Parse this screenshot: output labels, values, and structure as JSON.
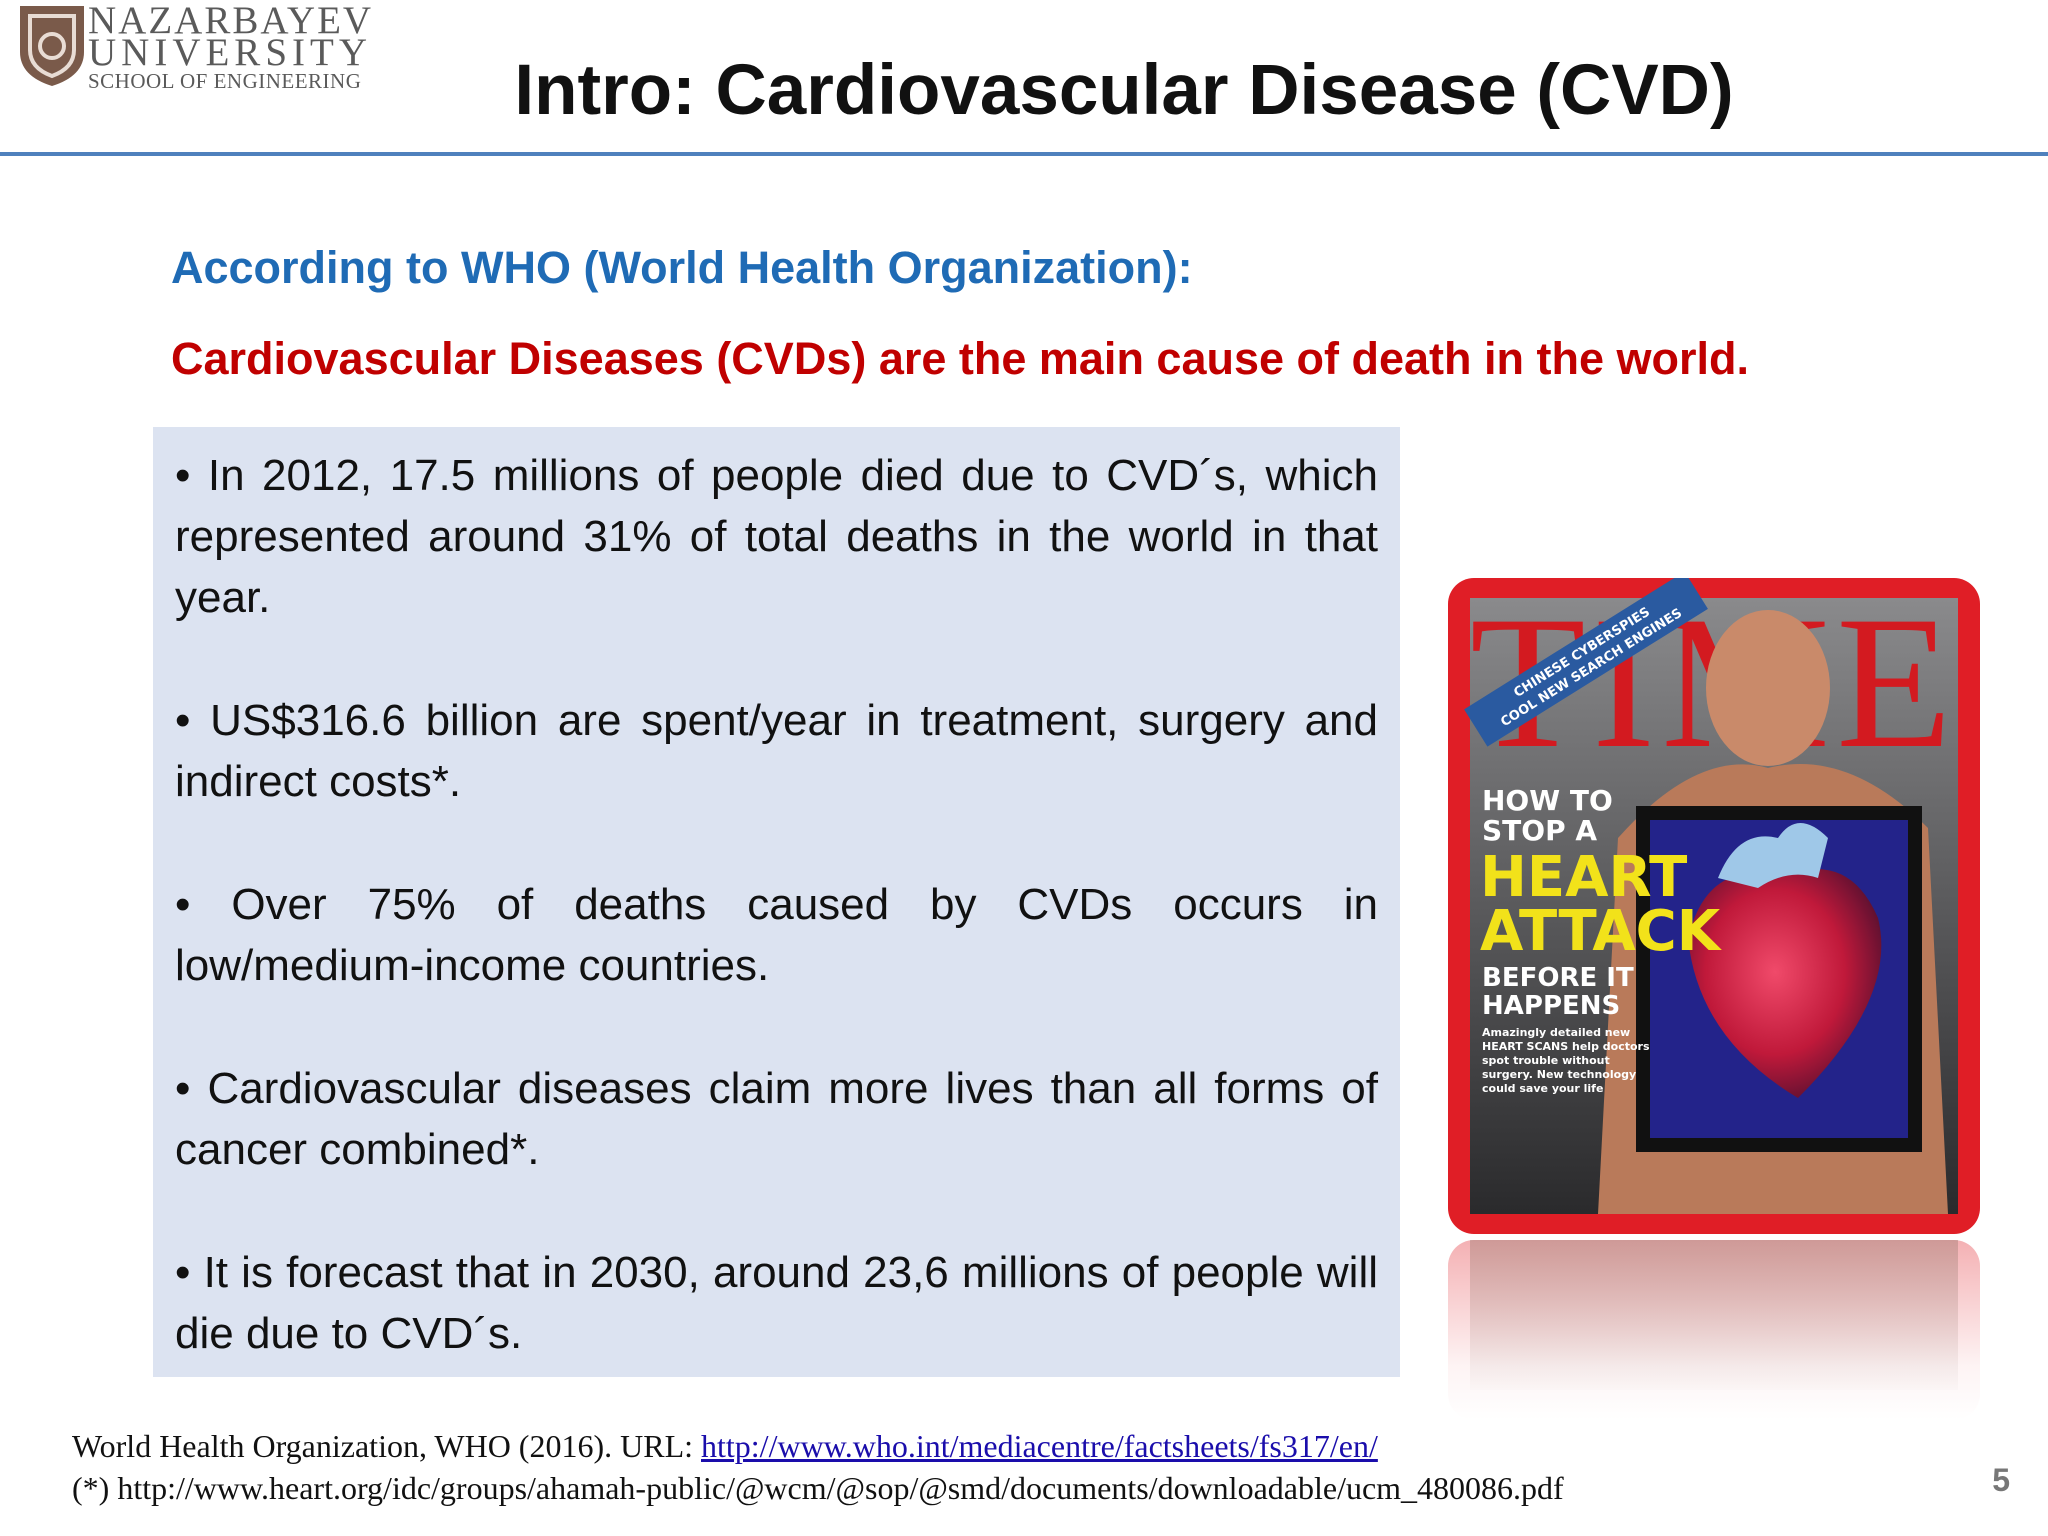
{
  "header": {
    "logo": {
      "line1": "NAZARBAYEV",
      "line2": "UNIVERSITY",
      "line3": "SCHOOL OF ENGINEERING"
    },
    "title": "Intro: Cardiovascular Disease (CVD)",
    "rule_color": "#4f81bd"
  },
  "intro": {
    "heading": "According to WHO (World Health Organization):",
    "heading_color": "#1f6bb5",
    "claim": "Cardiovascular Diseases  (CVDs) are the main cause of death in the world.",
    "claim_color": "#c00000"
  },
  "bullets": [
    "In 2012, 17.5 millions of people died due to CVD´s, which represented around 31% of total deaths in the world in that year.",
    "US$316.6 billion are spent/year in treatment, surgery and indirect costs*.",
    "Over 75% of deaths caused by CVDs occurs in low/medium-income countries.",
    "Cardiovascular diseases claim more lives than all forms of cancer combined*.",
    "It is forecast that in 2030, around 23,6 millions of people will die due to CVD´s."
  ],
  "magazine_cover": {
    "masthead": "TIME",
    "banner_line1": "CHINESE CYBERSPIES",
    "banner_line2": "COOL NEW SEARCH ENGINES",
    "headline_line1": "HOW TO",
    "headline_line2": "STOP A",
    "headline_line3": "HEART",
    "headline_line4": "ATTACK",
    "headline_line5": "BEFORE IT",
    "headline_line6": "HAPPENS",
    "deck_line1": "Amazingly detailed new",
    "deck_line2": "HEART SCANS help doctors",
    "deck_line3": "spot trouble without",
    "deck_line4": "surgery. New technology",
    "deck_line5": "could save your life",
    "border_color": "#e01e26"
  },
  "footer": {
    "ref1_prefix": "World Health Organization, WHO (2016). URL: ",
    "ref1_link": "http://www.who.int/mediacentre/factsheets/fs317/en/",
    "ref2": "(*) http://www.heart.org/idc/groups/ahamah-public/@wcm/@sop/@smd/documents/downloadable/ucm_480086.pdf",
    "page_number": "5"
  }
}
